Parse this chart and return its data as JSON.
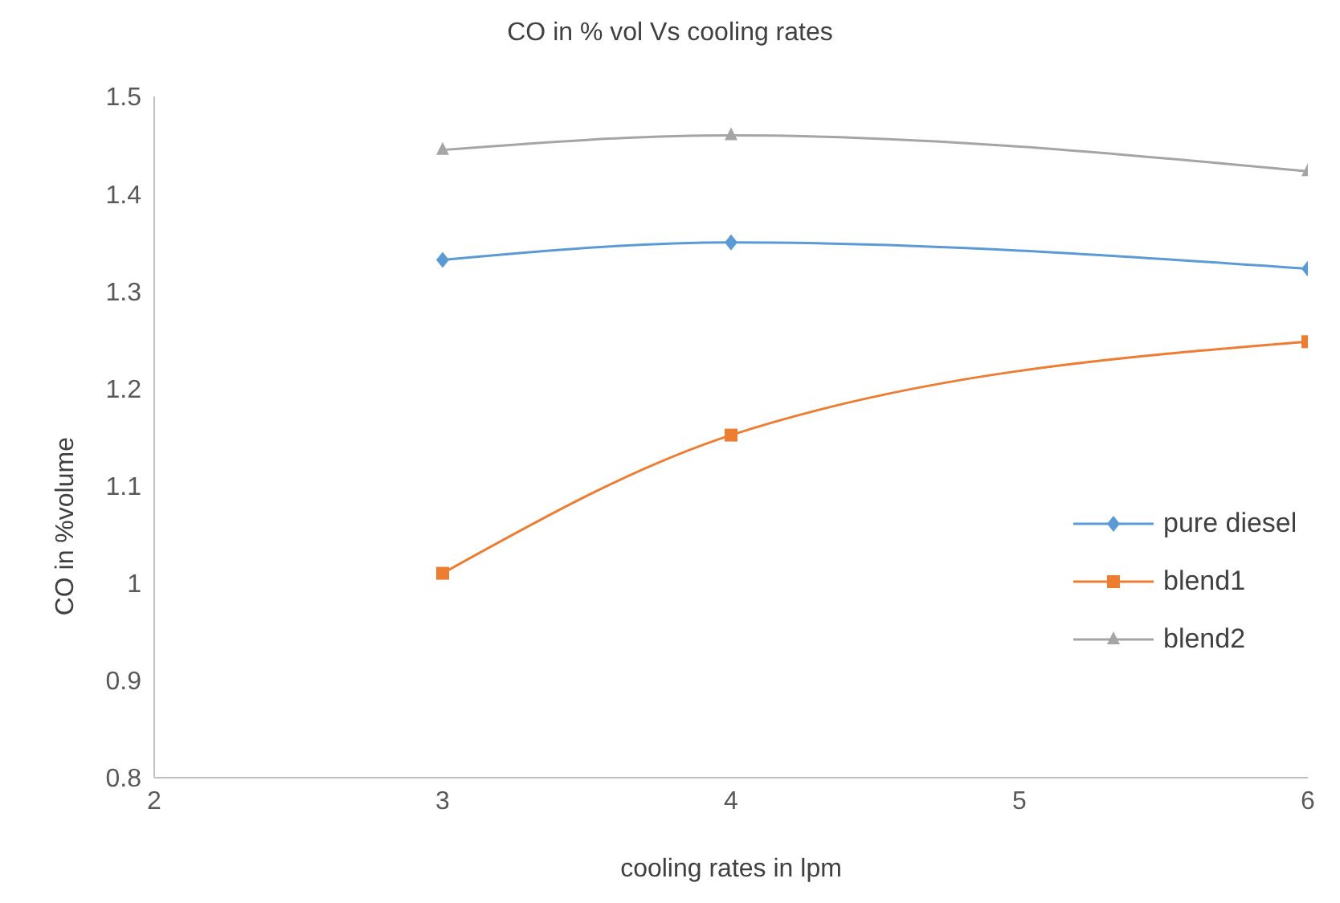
{
  "chart_data": {
    "type": "line",
    "title": "CO in % vol Vs cooling rates",
    "xlabel": "cooling rates in lpm",
    "ylabel": "CO in %volume",
    "x": [
      3,
      4,
      6
    ],
    "xlim": [
      2,
      6
    ],
    "xticks": [
      2,
      3,
      4,
      5,
      6
    ],
    "ylim": [
      0.8,
      1.5
    ],
    "yticks": [
      0.8,
      0.9,
      1,
      1.1,
      1.2,
      1.3,
      1.4,
      1.5
    ],
    "grid": false,
    "legend": "right",
    "line_style": "solid",
    "series": [
      {
        "name": "pure diesel",
        "color": "#5b9bd5",
        "marker": "diamond",
        "values": [
          1.332,
          1.35,
          1.323
        ]
      },
      {
        "name": "blend1",
        "color": "#ed7d31",
        "marker": "square",
        "values": [
          1.01,
          1.152,
          1.248
        ]
      },
      {
        "name": "blend2",
        "color": "#a5a5a5",
        "marker": "triangle",
        "values": [
          1.445,
          1.46,
          1.423
        ]
      }
    ]
  }
}
